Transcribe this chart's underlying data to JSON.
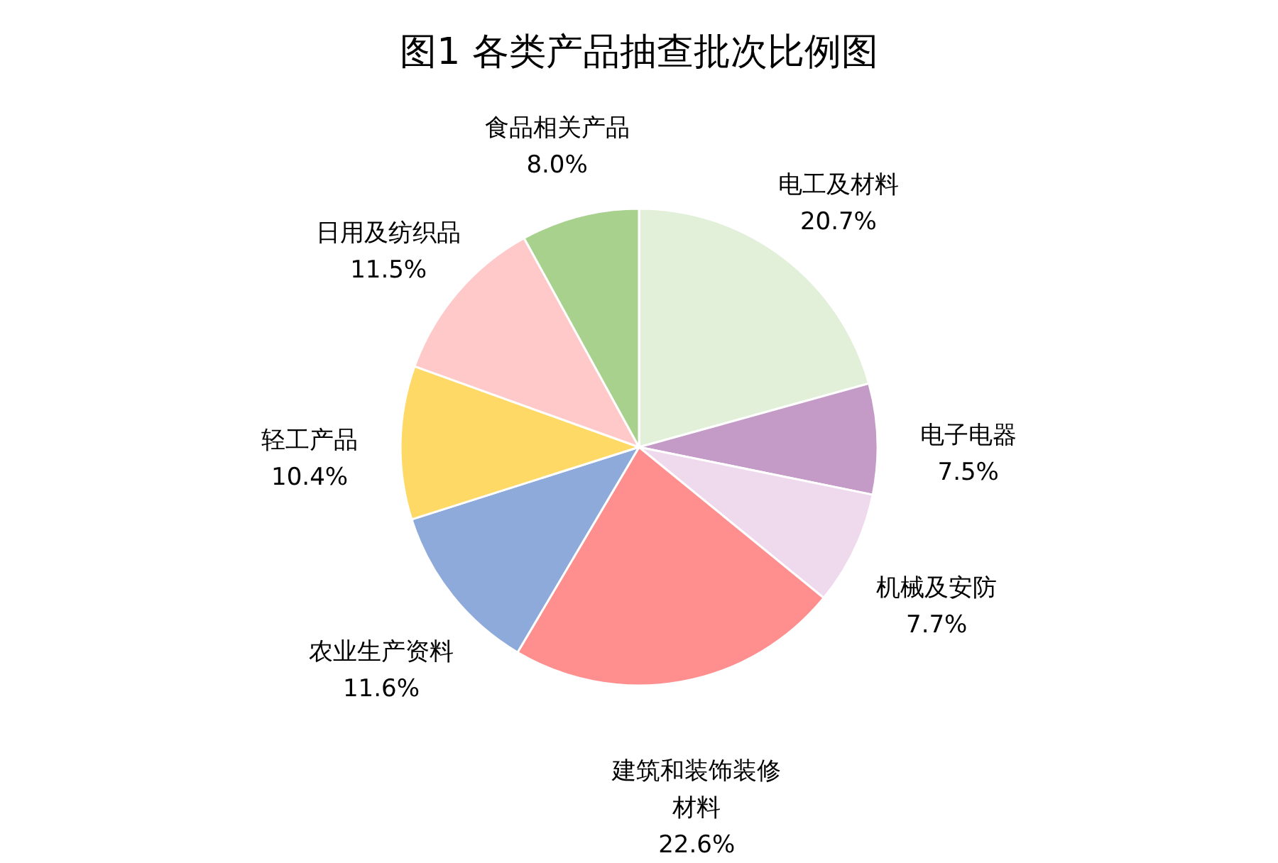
{
  "chart_data": {
    "type": "pie",
    "title": "图1 各类产品抽查批次比例图",
    "categories": [
      "电工及材料",
      "电子电器",
      "机械及安防",
      "建筑和装饰装修材料",
      "农业生产资料",
      "轻工产品",
      "日用及纺织品",
      "食品相关产品"
    ],
    "values": [
      20.7,
      7.5,
      7.7,
      22.6,
      11.6,
      10.4,
      11.5,
      8.0
    ],
    "value_labels": [
      "20.7%",
      "7.5%",
      "7.7%",
      "22.6%",
      "11.6%",
      "10.4%",
      "11.5%",
      "8.0%"
    ],
    "colors": [
      "#e2efd9",
      "#c39bc6",
      "#efd9ec",
      "#ff8f8f",
      "#8eaadb",
      "#ffd966",
      "#ffc9c9",
      "#a9d18e"
    ]
  }
}
